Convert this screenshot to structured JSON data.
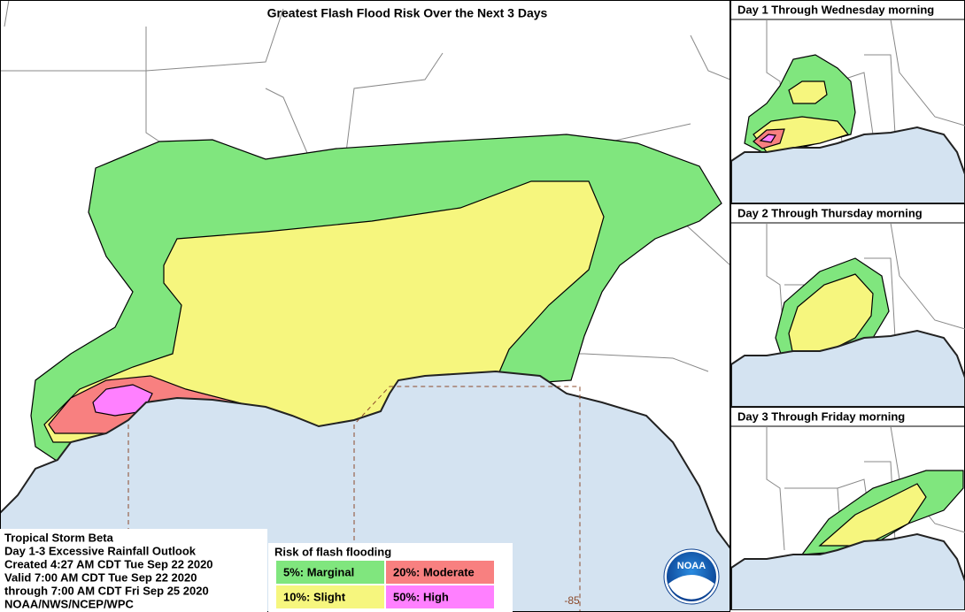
{
  "header": {
    "title": "Greatest Flash Flood Risk Over the Next 3 Days"
  },
  "panels": [
    {
      "title": "Day 1 Through Wednesday morning"
    },
    {
      "title": "Day 2 Through Thursday morning"
    },
    {
      "title": "Day 3 Through Friday morning"
    }
  ],
  "info": {
    "lines": [
      "Tropical Storm Beta",
      "Day 1-3 Excessive Rainfall Outlook",
      "Created 4:27 AM CDT Tue Sep 22 2020",
      "Valid 7:00 AM CDT Tue Sep 22 2020",
      "through 7:00 AM CDT Fri Sep 25 2020",
      "NOAA/NWS/NCEP/WPC"
    ]
  },
  "legend": {
    "title": "Risk of flash flooding",
    "items": [
      {
        "label": "5%: Marginal",
        "color": "#80e67e"
      },
      {
        "label": "20%: Moderate",
        "color": "#f88080"
      },
      {
        "label": "10%: Slight",
        "color": "#f6f67e"
      },
      {
        "label": "50%: High",
        "color": "#ff80ff"
      }
    ]
  },
  "map": {
    "longitude_label": "-85"
  },
  "logo": {
    "text": "NOAA"
  }
}
